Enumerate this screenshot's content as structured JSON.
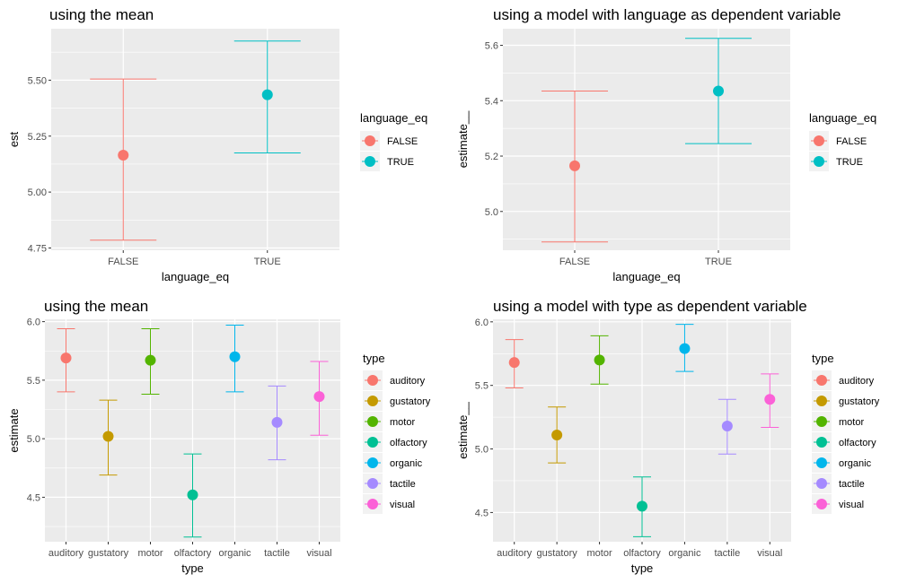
{
  "chart_data": [
    {
      "type": "scatter",
      "style": "point-with-errorbar",
      "title": "using the mean",
      "xlabel": "language_eq",
      "ylabel": "est",
      "categories": [
        "FALSE",
        "TRUE"
      ],
      "points": [
        {
          "x": "FALSE",
          "y": 5.165,
          "ymin": 4.785,
          "ymax": 5.505,
          "color": "#F8766D"
        },
        {
          "x": "TRUE",
          "y": 5.435,
          "ymin": 5.175,
          "ymax": 5.675,
          "color": "#00BFC4"
        }
      ],
      "ylim": [
        4.74,
        5.73
      ],
      "yticks": [
        4.75,
        5.0,
        5.25,
        5.5
      ],
      "ytick_labels": [
        "4.75",
        "5.00",
        "5.25",
        "5.50"
      ],
      "legend": {
        "title": "language_eq",
        "position": "right",
        "entries": [
          {
            "label": "FALSE",
            "color": "#F8766D"
          },
          {
            "label": "TRUE",
            "color": "#00BFC4"
          }
        ]
      }
    },
    {
      "type": "scatter",
      "style": "point-with-errorbar",
      "title": "using a model with language as dependent variable",
      "xlabel": "language_eq",
      "ylabel": "estimate__",
      "categories": [
        "FALSE",
        "TRUE"
      ],
      "points": [
        {
          "x": "FALSE",
          "y": 5.165,
          "ymin": 4.89,
          "ymax": 5.435,
          "color": "#F8766D"
        },
        {
          "x": "TRUE",
          "y": 5.435,
          "ymin": 5.245,
          "ymax": 5.625,
          "color": "#00BFC4"
        }
      ],
      "ylim": [
        4.86,
        5.66
      ],
      "yticks": [
        5.0,
        5.2,
        5.4,
        5.6
      ],
      "ytick_labels": [
        "5.0",
        "5.2",
        "5.4",
        "5.6"
      ],
      "legend": {
        "title": "language_eq",
        "position": "right",
        "entries": [
          {
            "label": "FALSE",
            "color": "#F8766D"
          },
          {
            "label": "TRUE",
            "color": "#00BFC4"
          }
        ]
      }
    },
    {
      "type": "scatter",
      "style": "point-with-errorbar",
      "title": "using the mean",
      "xlabel": "type",
      "ylabel": "estimate",
      "categories": [
        "auditory",
        "gustatory",
        "motor",
        "olfactory",
        "organic",
        "tactile",
        "visual"
      ],
      "points": [
        {
          "x": "auditory",
          "y": 5.69,
          "ymin": 5.4,
          "ymax": 5.94,
          "color": "#F8766D"
        },
        {
          "x": "gustatory",
          "y": 5.02,
          "ymin": 4.69,
          "ymax": 5.33,
          "color": "#C49A00"
        },
        {
          "x": "motor",
          "y": 5.67,
          "ymin": 5.38,
          "ymax": 5.94,
          "color": "#53B400"
        },
        {
          "x": "olfactory",
          "y": 4.52,
          "ymin": 4.16,
          "ymax": 4.87,
          "color": "#00C094"
        },
        {
          "x": "organic",
          "y": 5.7,
          "ymin": 5.4,
          "ymax": 5.97,
          "color": "#00B6EB"
        },
        {
          "x": "tactile",
          "y": 5.14,
          "ymin": 4.82,
          "ymax": 5.45,
          "color": "#A58AFF"
        },
        {
          "x": "visual",
          "y": 5.36,
          "ymin": 5.03,
          "ymax": 5.66,
          "color": "#FB61D7"
        }
      ],
      "ylim": [
        4.12,
        6.02
      ],
      "yticks": [
        4.5,
        5.0,
        5.5,
        6.0
      ],
      "ytick_labels": [
        "4.5",
        "5.0",
        "5.5",
        "6.0"
      ],
      "legend": {
        "title": "type",
        "position": "right",
        "entries": [
          {
            "label": "auditory",
            "color": "#F8766D"
          },
          {
            "label": "gustatory",
            "color": "#C49A00"
          },
          {
            "label": "motor",
            "color": "#53B400"
          },
          {
            "label": "olfactory",
            "color": "#00C094"
          },
          {
            "label": "organic",
            "color": "#00B6EB"
          },
          {
            "label": "tactile",
            "color": "#A58AFF"
          },
          {
            "label": "visual",
            "color": "#FB61D7"
          }
        ]
      }
    },
    {
      "type": "scatter",
      "style": "point-with-errorbar",
      "title": "using a model with type as dependent variable",
      "xlabel": "type",
      "ylabel": "estimate__",
      "categories": [
        "auditory",
        "gustatory",
        "motor",
        "olfactory",
        "organic",
        "tactile",
        "visual"
      ],
      "points": [
        {
          "x": "auditory",
          "y": 5.68,
          "ymin": 5.48,
          "ymax": 5.86,
          "color": "#F8766D"
        },
        {
          "x": "gustatory",
          "y": 5.11,
          "ymin": 4.89,
          "ymax": 5.33,
          "color": "#C49A00"
        },
        {
          "x": "motor",
          "y": 5.7,
          "ymin": 5.51,
          "ymax": 5.89,
          "color": "#53B400"
        },
        {
          "x": "olfactory",
          "y": 4.55,
          "ymin": 4.31,
          "ymax": 4.78,
          "color": "#00C094"
        },
        {
          "x": "organic",
          "y": 5.79,
          "ymin": 5.61,
          "ymax": 5.98,
          "color": "#00B6EB"
        },
        {
          "x": "tactile",
          "y": 5.18,
          "ymin": 4.96,
          "ymax": 5.39,
          "color": "#A58AFF"
        },
        {
          "x": "visual",
          "y": 5.39,
          "ymin": 5.17,
          "ymax": 5.59,
          "color": "#FB61D7"
        }
      ],
      "ylim": [
        4.27,
        6.02
      ],
      "yticks": [
        4.5,
        5.0,
        5.5,
        6.0
      ],
      "ytick_labels": [
        "4.5",
        "5.0",
        "5.5",
        "6.0"
      ],
      "legend": {
        "title": "type",
        "position": "right",
        "entries": [
          {
            "label": "auditory",
            "color": "#F8766D"
          },
          {
            "label": "gustatory",
            "color": "#C49A00"
          },
          {
            "label": "motor",
            "color": "#53B400"
          },
          {
            "label": "olfactory",
            "color": "#00C094"
          },
          {
            "label": "organic",
            "color": "#00B6EB"
          },
          {
            "label": "tactile",
            "color": "#A58AFF"
          },
          {
            "label": "visual",
            "color": "#FB61D7"
          }
        ]
      }
    }
  ]
}
